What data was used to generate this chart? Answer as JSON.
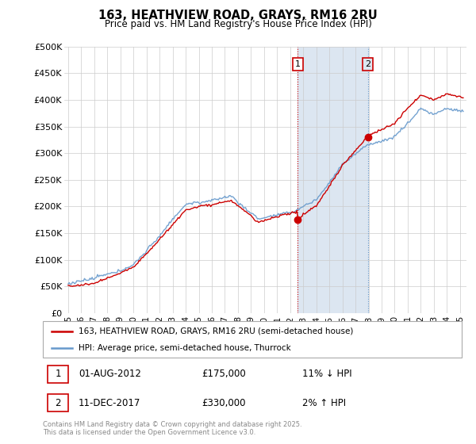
{
  "title": "163, HEATHVIEW ROAD, GRAYS, RM16 2RU",
  "subtitle": "Price paid vs. HM Land Registry's House Price Index (HPI)",
  "ylabel_ticks": [
    "£0",
    "£50K",
    "£100K",
    "£150K",
    "£200K",
    "£250K",
    "£300K",
    "£350K",
    "£400K",
    "£450K",
    "£500K"
  ],
  "ytick_values": [
    0,
    50000,
    100000,
    150000,
    200000,
    250000,
    300000,
    350000,
    400000,
    450000,
    500000
  ],
  "xlim": [
    1994.7,
    2025.5
  ],
  "ylim": [
    0,
    500000
  ],
  "purchase1": {
    "date": "01-AUG-2012",
    "price": 175000,
    "label": "1",
    "hpi_pct": "11% ↓ HPI",
    "year_float": 2012.58
  },
  "purchase2": {
    "date": "11-DEC-2017",
    "price": 330000,
    "label": "2",
    "hpi_pct": "2% ↑ HPI",
    "year_float": 2017.94
  },
  "legend_red_label": "163, HEATHVIEW ROAD, GRAYS, RM16 2RU (semi-detached house)",
  "legend_blue_label": "HPI: Average price, semi-detached house, Thurrock",
  "table_rows": [
    {
      "num": "1",
      "date": "01-AUG-2012",
      "price": "£175,000",
      "hpi": "11% ↓ HPI"
    },
    {
      "num": "2",
      "date": "11-DEC-2017",
      "price": "£330,000",
      "hpi": "2% ↑ HPI"
    }
  ],
  "footnote": "Contains HM Land Registry data © Crown copyright and database right 2025.\nThis data is licensed under the Open Government Licence v3.0.",
  "red_color": "#cc0000",
  "blue_color": "#6699cc",
  "shading_color": "#dce6f1",
  "vline1_color": "#cc0000",
  "vline2_color": "#6699cc",
  "background_color": "#ffffff",
  "grid_color": "#cccccc"
}
